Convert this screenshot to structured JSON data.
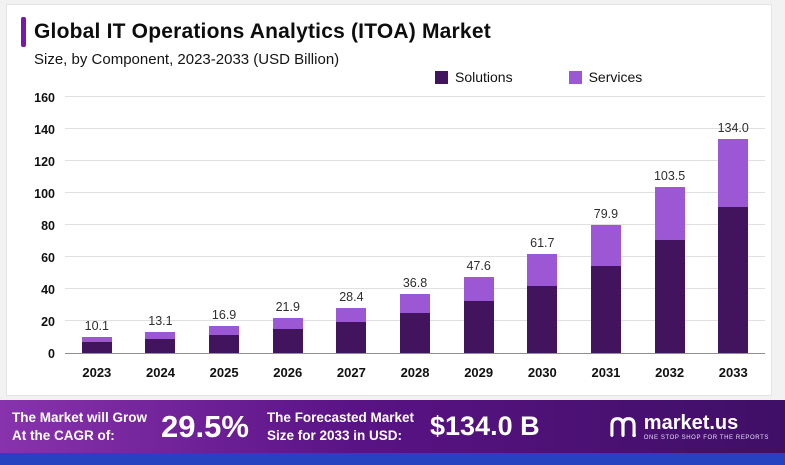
{
  "header": {
    "title": "Global IT Operations Analytics (ITOA) Market",
    "subtitle": "Size, by Component, 2023-2033 (USD Billion)"
  },
  "legend": [
    {
      "label": "Solutions",
      "color": "#42145e"
    },
    {
      "label": "Services",
      "color": "#9c57d4"
    }
  ],
  "chart_data": {
    "type": "bar",
    "stacked": true,
    "title": "Global IT Operations Analytics (ITOA) Market",
    "subtitle": "Size, by Component, 2023-2033 (USD Billion)",
    "xlabel": "",
    "ylabel": "USD Billion",
    "ylim": [
      0,
      160
    ],
    "yticks": [
      0,
      20,
      40,
      60,
      80,
      100,
      120,
      140,
      160
    ],
    "grid": true,
    "legend_position": "top-right",
    "categories": [
      "2023",
      "2024",
      "2025",
      "2026",
      "2027",
      "2028",
      "2029",
      "2030",
      "2031",
      "2032",
      "2033"
    ],
    "series": [
      {
        "name": "Solutions",
        "color": "#42145e",
        "values": [
          6.9,
          9.0,
          11.5,
          15.0,
          19.4,
          25.1,
          32.4,
          42.0,
          54.4,
          70.4,
          91.2
        ]
      },
      {
        "name": "Services",
        "color": "#9c57d4",
        "values": [
          3.2,
          4.1,
          5.4,
          6.9,
          9.0,
          11.7,
          15.2,
          19.7,
          25.5,
          33.1,
          42.8
        ]
      }
    ],
    "totals": [
      10.1,
      13.1,
      16.9,
      21.9,
      28.4,
      36.8,
      47.6,
      61.7,
      79.9,
      103.5,
      134.0
    ]
  },
  "banner": {
    "cagr_label_line1": "The Market will Grow",
    "cagr_label_line2": "At the CAGR of:",
    "cagr_value": "29.5%",
    "forecast_label_line1": "The Forecasted Market",
    "forecast_label_line2": "Size for 2033 in USD:",
    "forecast_value": "$134.0 B",
    "brand": "market.us",
    "brand_tagline": "ONE STOP SHOP FOR THE REPORTS"
  },
  "colors": {
    "solutions": "#42145e",
    "services": "#9c57d4",
    "title_accent": "#7719aa",
    "banner_gradient_left": "#8833ad",
    "banner_gradient_right": "#3f0f66",
    "bottom_strip": "#2742c0",
    "page_background": "#f2f2f2",
    "card_background": "#ffffff"
  }
}
